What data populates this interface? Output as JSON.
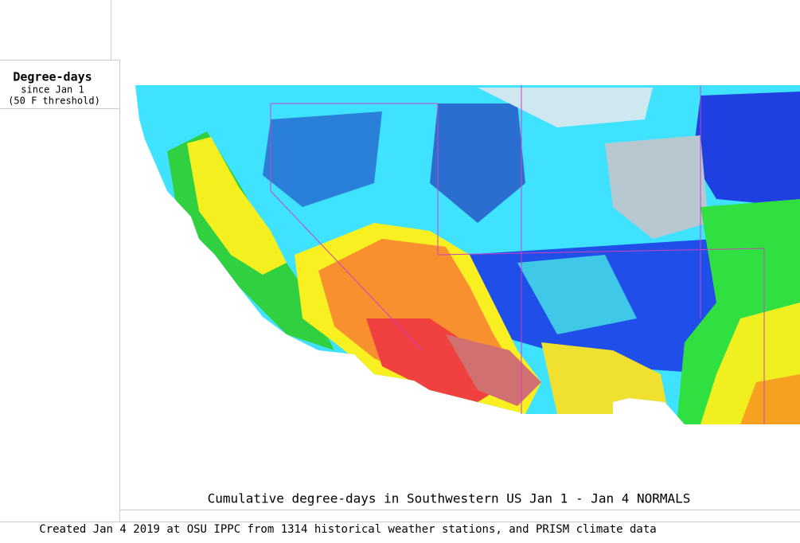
{
  "legend": {
    "title": "Degree-days",
    "subtitle": "since Jan 1",
    "threshold": "(50 F threshold)"
  },
  "caption": "Cumulative degree-days in Southwestern US Jan 1 - Jan 4 NORMALS",
  "footer": "Created Jan 4 2019 at OSU IPPC from 1314 historical weather stations, and PRISM climate data"
}
